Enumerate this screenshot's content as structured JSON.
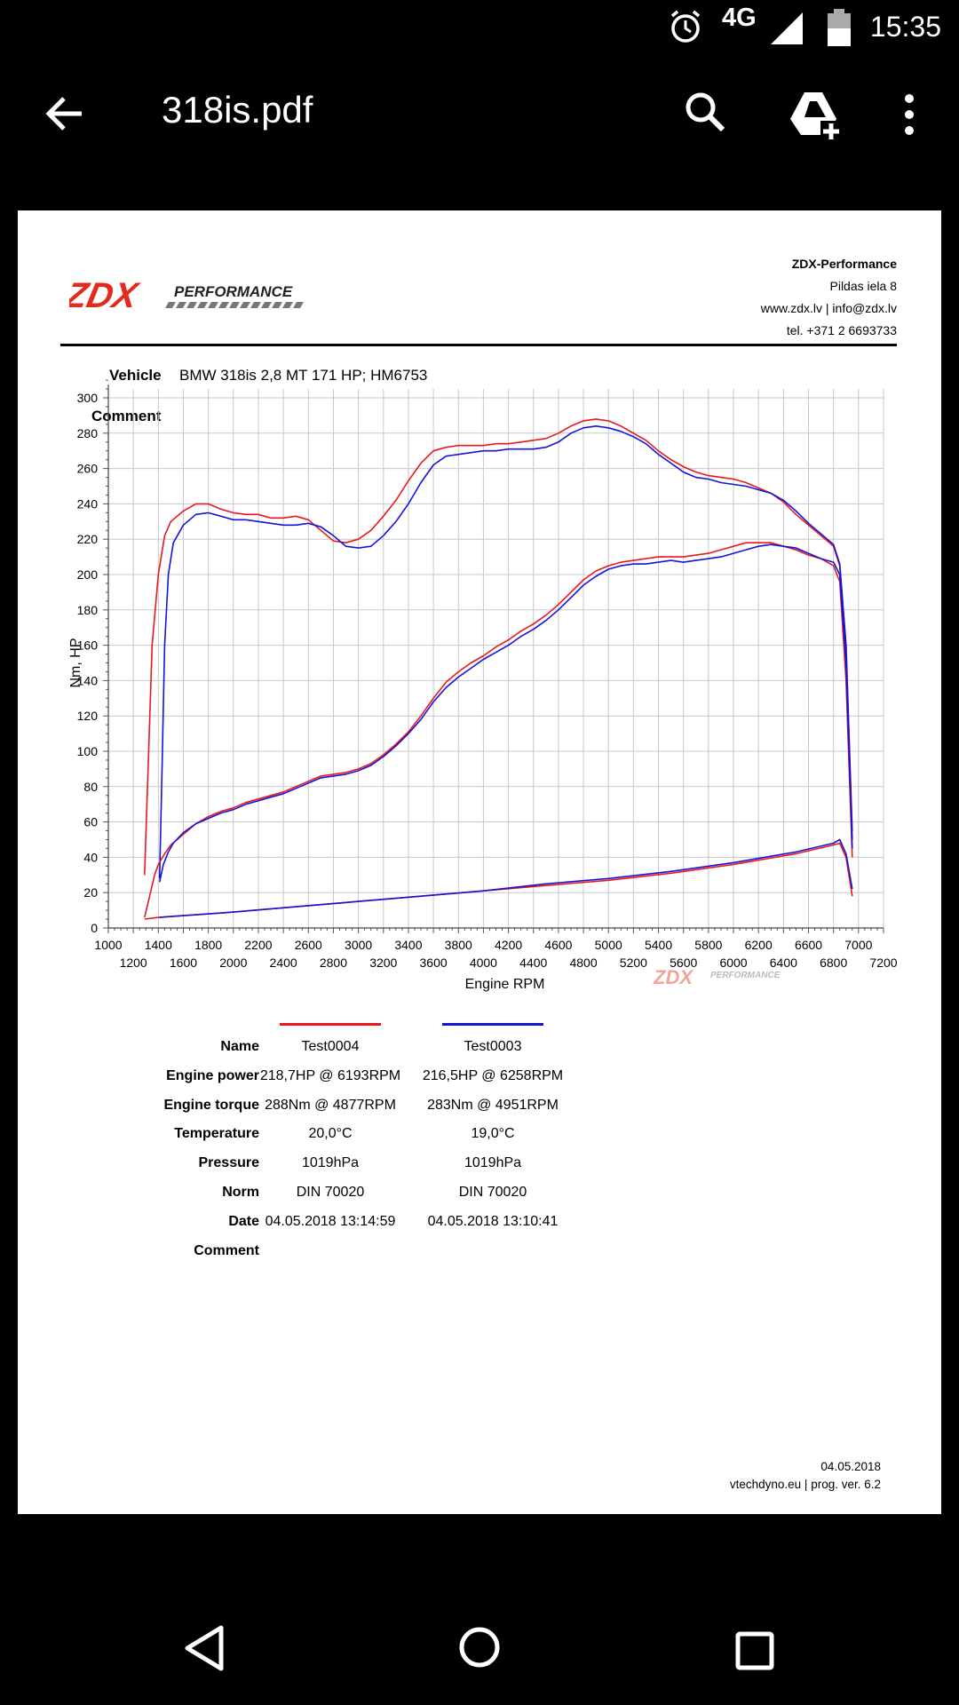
{
  "status_bar": {
    "time": "15:35",
    "network": "4G",
    "battery_level": "59"
  },
  "app_bar": {
    "title": "318is.pdf"
  },
  "icons": [
    "alarm-icon",
    "signal-icon",
    "battery-icon",
    "back-arrow-icon",
    "search-icon",
    "drive-add-icon",
    "more-vert-icon",
    "nav-back-icon",
    "nav-home-icon",
    "nav-recent-icon"
  ],
  "colors": {
    "test0004": "#e8191c",
    "test0003": "#1414d8",
    "logo_red": "#e32a1c"
  },
  "document": {
    "logo": {
      "text": "ZDX",
      "sub": "PERFORMANCE"
    },
    "company": {
      "name": "ZDX-Performance",
      "address": "Pildas iela 8",
      "web": "www.zdx.lv | info@zdx.lv",
      "tel": "tel. +371 2 6693733"
    },
    "vehicle_label": "Vehicle",
    "vehicle": "BMW 318is 2,8 MT 171 HP; HM6753",
    "comment_label": "Comment",
    "results": {
      "labels": {
        "name": "Name",
        "power": "Engine power",
        "torque": "Engine torque",
        "temperature": "Temperature",
        "pressure": "Pressure",
        "norm": "Norm",
        "date": "Date",
        "comment": "Comment"
      },
      "tests": [
        {
          "name": "Test0004",
          "power": "218,7HP @  6193RPM",
          "torque": "288Nm @ 4877RPM",
          "temperature": "20,0°C",
          "pressure": "1019hPa",
          "norm": "DIN 70020",
          "date": "04.05.2018 13:14:59"
        },
        {
          "name": "Test0003",
          "power": "216,5HP @  6258RPM",
          "torque": "283Nm @ 4951RPM",
          "temperature": "19,0°C",
          "pressure": "1019hPa",
          "norm": "DIN 70020",
          "date": "04.05.2018 13:10:41"
        }
      ]
    },
    "footer": {
      "date": "04.05.2018",
      "program": "vtechdyno.eu | prog. ver. 6.2"
    }
  },
  "chart_data": {
    "type": "line",
    "xlabel": "Engine RPM",
    "ylabel": "Nm, HP",
    "xlim": [
      1000,
      7200
    ],
    "ylim": [
      0,
      300
    ],
    "x_ticks": [
      1000,
      1200,
      1400,
      1600,
      1800,
      2000,
      2200,
      2400,
      2600,
      2800,
      3000,
      3200,
      3400,
      3600,
      3800,
      4000,
      4200,
      4400,
      4600,
      4800,
      5000,
      5200,
      5400,
      5600,
      5800,
      6000,
      6200,
      6400,
      6600,
      6800,
      7000,
      7200
    ],
    "y_ticks": [
      0,
      20,
      40,
      60,
      80,
      100,
      120,
      140,
      160,
      180,
      200,
      220,
      240,
      260,
      280,
      300
    ],
    "grid": true,
    "series": [
      {
        "name": "Test0004",
        "metric": "torque",
        "color_key": "test0004",
        "x": [
          1290,
          1320,
          1350,
          1400,
          1450,
          1500,
          1600,
          1700,
          1800,
          1900,
          2000,
          2100,
          2200,
          2300,
          2400,
          2500,
          2600,
          2700,
          2800,
          2900,
          3000,
          3100,
          3200,
          3300,
          3400,
          3500,
          3600,
          3700,
          3800,
          3900,
          4000,
          4100,
          4200,
          4300,
          4400,
          4500,
          4600,
          4700,
          4800,
          4900,
          5000,
          5100,
          5200,
          5300,
          5400,
          5500,
          5600,
          5700,
          5800,
          5900,
          6000,
          6100,
          6200,
          6300,
          6400,
          6500,
          6600,
          6700,
          6800,
          6850,
          6900,
          6950
        ],
        "y": [
          30,
          95,
          160,
          200,
          222,
          230,
          236,
          240,
          240,
          237,
          235,
          234,
          234,
          232,
          232,
          233,
          231,
          225,
          219,
          218,
          220,
          225,
          233,
          242,
          253,
          263,
          270,
          272,
          273,
          273,
          273,
          274,
          274,
          275,
          276,
          277,
          280,
          284,
          287,
          288,
          287,
          284,
          280,
          276,
          270,
          265,
          261,
          258,
          256,
          255,
          254,
          252,
          249,
          246,
          241,
          234,
          228,
          222,
          216,
          205,
          160,
          55
        ]
      },
      {
        "name": "Test0003",
        "metric": "torque",
        "color_key": "test0003",
        "x": [
          1410,
          1430,
          1450,
          1480,
          1520,
          1600,
          1700,
          1800,
          1900,
          2000,
          2100,
          2200,
          2300,
          2400,
          2500,
          2600,
          2700,
          2800,
          2900,
          3000,
          3100,
          3200,
          3300,
          3400,
          3500,
          3600,
          3700,
          3800,
          3900,
          4000,
          4100,
          4200,
          4300,
          4400,
          4500,
          4600,
          4700,
          4800,
          4900,
          5000,
          5100,
          5200,
          5300,
          5400,
          5500,
          5600,
          5700,
          5800,
          5900,
          6000,
          6100,
          6200,
          6300,
          6400,
          6500,
          6600,
          6700,
          6800,
          6850,
          6900,
          6950
        ],
        "y": [
          28,
          90,
          160,
          200,
          218,
          228,
          234,
          235,
          233,
          231,
          231,
          230,
          229,
          228,
          228,
          229,
          227,
          222,
          216,
          215,
          216,
          222,
          230,
          240,
          252,
          262,
          267,
          268,
          269,
          270,
          270,
          271,
          271,
          271,
          272,
          275,
          280,
          283,
          284,
          283,
          281,
          278,
          274,
          268,
          263,
          258,
          255,
          254,
          252,
          251,
          250,
          248,
          246,
          242,
          236,
          229,
          223,
          217,
          206,
          160,
          50
        ]
      },
      {
        "name": "Test0004",
        "metric": "power",
        "color_key": "test0004",
        "x": [
          1290,
          1330,
          1370,
          1400,
          1450,
          1500,
          1600,
          1700,
          1800,
          1900,
          2000,
          2100,
          2200,
          2300,
          2400,
          2500,
          2600,
          2700,
          2800,
          2900,
          3000,
          3100,
          3200,
          3300,
          3400,
          3500,
          3600,
          3700,
          3800,
          3900,
          4000,
          4100,
          4200,
          4300,
          4400,
          4500,
          4600,
          4700,
          4800,
          4900,
          5000,
          5100,
          5200,
          5300,
          5400,
          5500,
          5600,
          5700,
          5800,
          5900,
          6000,
          6100,
          6200,
          6300,
          6400,
          6500,
          6600,
          6700,
          6800,
          6850,
          6900,
          6950
        ],
        "y": [
          6,
          18,
          30,
          36,
          42,
          47,
          53,
          59,
          63,
          66,
          68,
          71,
          73,
          75,
          77,
          80,
          83,
          86,
          87,
          88,
          90,
          93,
          98,
          104,
          111,
          120,
          130,
          139,
          145,
          150,
          154,
          159,
          163,
          168,
          172,
          177,
          183,
          190,
          197,
          202,
          205,
          207,
          208,
          209,
          210,
          210,
          210,
          211,
          212,
          214,
          216,
          218,
          218,
          218,
          216,
          214,
          211,
          209,
          205,
          196,
          140,
          40
        ]
      },
      {
        "name": "Test0003",
        "metric": "power",
        "color_key": "test0003",
        "x": [
          1410,
          1440,
          1480,
          1520,
          1600,
          1700,
          1800,
          1900,
          2000,
          2100,
          2200,
          2300,
          2400,
          2500,
          2600,
          2700,
          2800,
          2900,
          3000,
          3100,
          3200,
          3300,
          3400,
          3500,
          3600,
          3700,
          3800,
          3900,
          4000,
          4100,
          4200,
          4300,
          4400,
          4500,
          4600,
          4700,
          4800,
          4900,
          5000,
          5100,
          5200,
          5300,
          5400,
          5500,
          5600,
          5700,
          5800,
          5900,
          6000,
          6100,
          6200,
          6300,
          6400,
          6500,
          6600,
          6700,
          6800,
          6850,
          6900,
          6950
        ],
        "y": [
          26,
          36,
          43,
          48,
          54,
          59,
          62,
          65,
          67,
          70,
          72,
          74,
          76,
          79,
          82,
          85,
          86,
          87,
          89,
          92,
          97,
          103,
          110,
          118,
          128,
          136,
          142,
          147,
          152,
          156,
          160,
          165,
          169,
          174,
          180,
          187,
          194,
          199,
          203,
          205,
          206,
          206,
          207,
          208,
          207,
          208,
          209,
          210,
          212,
          214,
          216,
          217,
          216,
          215,
          212,
          209,
          207,
          200,
          150,
          45
        ]
      },
      {
        "name": "Test0004",
        "metric": "loss",
        "color_key": "test0004",
        "x": [
          1290,
          1400,
          1600,
          2000,
          2500,
          3000,
          3500,
          4000,
          4500,
          5000,
          5500,
          6000,
          6500,
          6800,
          6850,
          6900,
          6950
        ],
        "y": [
          5,
          6,
          7,
          9,
          12,
          15,
          18,
          21,
          24,
          27,
          31,
          36,
          42,
          47,
          48,
          40,
          18
        ]
      },
      {
        "name": "Test0003",
        "metric": "loss",
        "color_key": "test0003",
        "x": [
          1410,
          1600,
          2000,
          2500,
          3000,
          3500,
          4000,
          4500,
          5000,
          5500,
          6000,
          6500,
          6800,
          6850,
          6900,
          6950
        ],
        "y": [
          6,
          7,
          9,
          12,
          15,
          18,
          21,
          25,
          28,
          32,
          37,
          43,
          48,
          50,
          42,
          22
        ]
      }
    ]
  }
}
